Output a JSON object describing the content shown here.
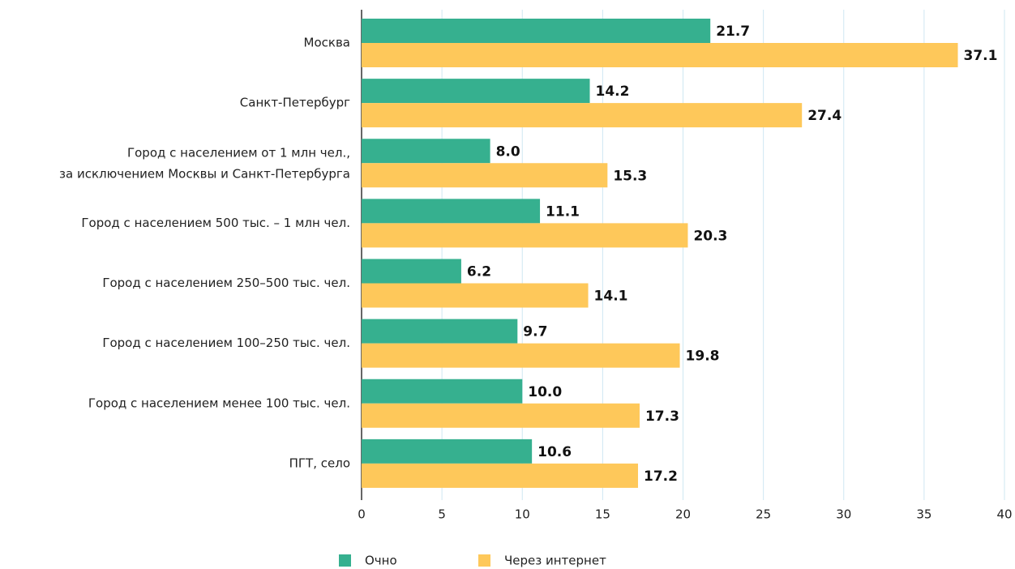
{
  "chart_data": {
    "type": "hbar",
    "categories": [
      "Москва",
      "Санкт-Петербург",
      "Город с населением от 1 млн чел.,\nза исключением Москвы и Санкт-Петербурга",
      "Город с населением 500 тыс. – 1 млн чел.",
      "Город с населением 250–500 тыс. чел.",
      "Город с населением 100–250 тыс. чел.",
      "Город с населением менее 100 тыс. чел.",
      "ПГТ, село"
    ],
    "series": [
      {
        "name": "Очно",
        "color": "#36b08f",
        "values": [
          21.7,
          14.2,
          8.0,
          11.1,
          6.2,
          9.7,
          10.0,
          10.6
        ],
        "value_labels": [
          "21.7",
          "14.2",
          "8.0",
          "11.1",
          "6.2",
          "9.7",
          "10.0",
          "10.6"
        ]
      },
      {
        "name": "Через интернет",
        "color": "#fec85a",
        "values": [
          37.1,
          27.4,
          15.3,
          20.3,
          14.1,
          19.8,
          17.3,
          17.2
        ],
        "value_labels": [
          "37.1",
          "27.4",
          "15.3",
          "20.3",
          "14.1",
          "19.8",
          "17.3",
          "17.2"
        ]
      }
    ],
    "xlim": [
      0,
      40
    ],
    "xticks": [
      0,
      5,
      10,
      15,
      20,
      25,
      30,
      35,
      40
    ],
    "grid": true,
    "legend": "bottom"
  }
}
